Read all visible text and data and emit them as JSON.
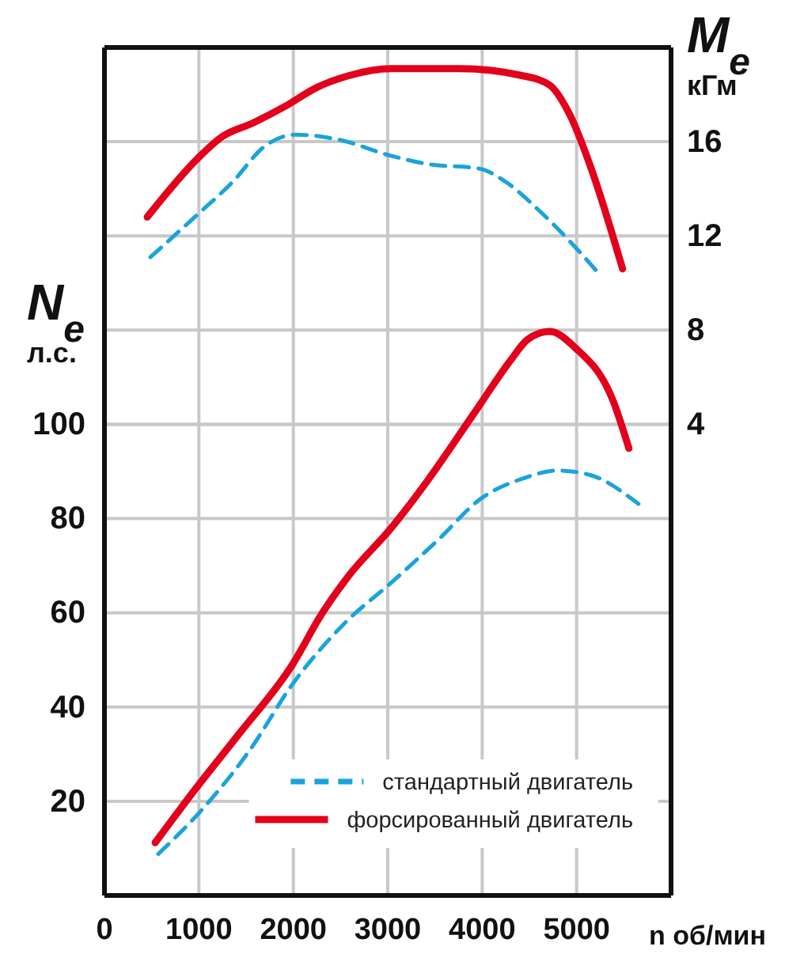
{
  "chart_data": {
    "type": "line",
    "xlabel": "n об/мин",
    "ylabel": "N$_{e}$ л.с.",
    "y2label": "M$_{e}$ кГм",
    "xlim": [
      0,
      6000
    ],
    "xticks": [
      0,
      1000,
      2000,
      3000,
      4000,
      5000
    ],
    "ylim": [
      0,
      180
    ],
    "yticks": [
      20,
      40,
      60,
      80,
      100
    ],
    "y2lim": [
      -16,
      20
    ],
    "y2ticks": [
      4,
      8,
      12,
      16
    ],
    "grid": true,
    "legend": "bottom right",
    "marker": "none",
    "series": [
      {
        "name": "стандартный двигатель",
        "color": "#1aa3dd",
        "line_style": "dashed",
        "axis": "y2",
        "x": [
          487,
          956,
          1359,
          1695,
          2030,
          2466,
          3037,
          3423,
          3977,
          4211,
          4597,
          4933,
          5235
        ],
        "values": [
          11.1,
          12.8,
          14.3,
          15.8,
          16.3,
          16.1,
          15.4,
          15.05,
          14.85,
          14.4,
          13.1,
          11.75,
          10.4
        ]
      },
      {
        "name": "форсированный двигатель",
        "color": "#e3001b",
        "line_style": "solid",
        "axis": "y2",
        "x": [
          453,
          990,
          1242,
          1577,
          1913,
          2248,
          2584,
          3037,
          3758,
          4430,
          4715,
          4933,
          5151,
          5487
        ],
        "values": [
          12.8,
          15.3,
          16.2,
          16.8,
          17.5,
          18.3,
          18.8,
          19.1,
          19.1,
          18.8,
          18.4,
          17.1,
          14.9,
          10.6
        ]
      },
      {
        "color": "#1aa3dd",
        "line_style": "dashed",
        "x": [
          570,
          1023,
          1527,
          1997,
          2534,
          3037,
          3540,
          3977,
          4430,
          4799,
          5151,
          5655
        ],
        "values": [
          8.8,
          18,
          30.5,
          45,
          57.6,
          66.4,
          75.6,
          84.1,
          88.5,
          90.2,
          89.2,
          83.1
        ]
      },
      {
        "color": "#e3001b",
        "line_style": "solid",
        "x": [
          537,
          956,
          1409,
          1997,
          2299,
          2584,
          3037,
          3423,
          3926,
          4312,
          4480,
          4715,
          4983,
          5386,
          5554
        ],
        "values": [
          11.2,
          22.4,
          33.9,
          49.2,
          59.7,
          67.8,
          78,
          88.1,
          102.7,
          113.9,
          118,
          119.7,
          116.3,
          105,
          94.9
        ]
      }
    ]
  }
}
